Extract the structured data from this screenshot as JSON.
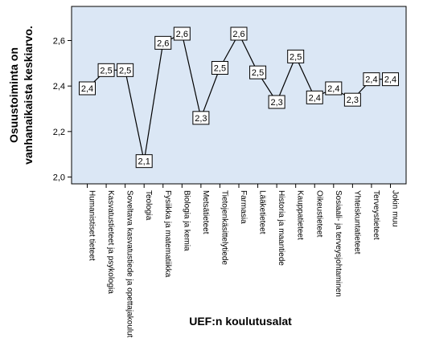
{
  "chart_data": {
    "type": "line",
    "xlabel": "UEF:n koulutusalat",
    "ylabel_lines": [
      "Osuustoiminta on",
      "vanhanaikaista keskiarvo."
    ],
    "ylim": [
      1.97,
      2.75
    ],
    "yticks": [
      2.0,
      2.2,
      2.4,
      2.6
    ],
    "ytick_labels": [
      "2,0",
      "2,2",
      "2,4",
      "2,6"
    ],
    "categories": [
      "Humanistiset tieteet",
      "Kasvatustieteet ja psykologia",
      "Soveltava kasvatustiede ja opettajakoulutus",
      "Teologia",
      "Fysiikka ja matematiikka",
      "Biologia ja kemia",
      "Metsätieteet",
      "Tietojenkäsittelytiede",
      "Farmasia",
      "Lääketieteet",
      "Historia ja maantiede",
      "Kauppatieteet",
      "Oikeustieteet",
      "Sosiaali- ja terveysjohtaminen",
      "Yhteiskuntatieteet",
      "Terveystieteet",
      "Jokin muu"
    ],
    "values": [
      2.39,
      2.47,
      2.47,
      2.07,
      2.59,
      2.63,
      2.26,
      2.48,
      2.63,
      2.46,
      2.33,
      2.53,
      2.35,
      2.39,
      2.34,
      2.43,
      2.43
    ],
    "data_labels": [
      "2,4",
      "2,5",
      "2,5",
      "2,1",
      "2,6",
      "2,6",
      "2,3",
      "2,5",
      "2,6",
      "2,5",
      "2,3",
      "2,5",
      "2,4",
      "2,4",
      "2,3",
      "2,4",
      "2,4"
    ],
    "grid": false,
    "legend": "none",
    "colors": {
      "plot_background": "#dbe7f5",
      "line": "#000000",
      "label_box_fill": "#ffffff",
      "label_box_stroke": "#000000",
      "frame": "#000000"
    }
  }
}
